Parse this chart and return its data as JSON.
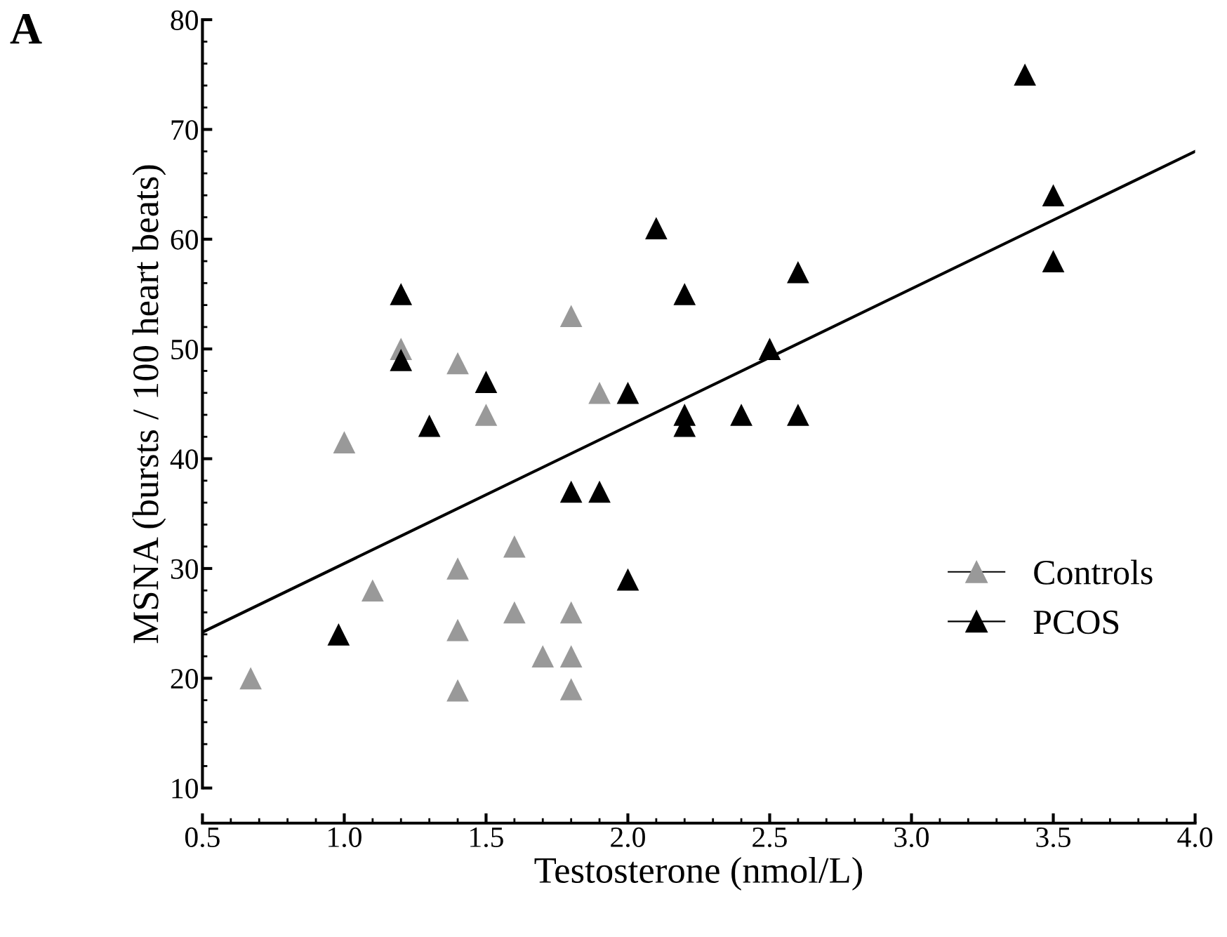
{
  "chart_data": {
    "type": "scatter",
    "xlabel": "Testosterone (nmol/L)",
    "ylabel": "MSNA (bursts / 100 heart beats)",
    "annotations": [
      "A"
    ],
    "xlim": [
      0.5,
      4.0
    ],
    "xticks": [
      {
        "value": 0.5,
        "label": "0.5"
      },
      {
        "value": 1.0,
        "label": "1.0"
      },
      {
        "value": 1.5,
        "label": "1.5"
      },
      {
        "value": 2.0,
        "label": "2.0"
      },
      {
        "value": 2.5,
        "label": "2.5"
      },
      {
        "value": 3.0,
        "label": "3.0"
      },
      {
        "value": 3.5,
        "label": "3.5"
      },
      {
        "value": 4.0,
        "label": "4.0"
      }
    ],
    "ylim": [
      10,
      80
    ],
    "yticks": [
      10,
      20,
      30,
      40,
      50,
      60,
      70,
      80
    ],
    "grid": false,
    "legend": "bottom right",
    "series": [
      {
        "name": "Controls",
        "color": "#999999",
        "marker": "triangle",
        "x": [
          0.67,
          1.0,
          1.1,
          1.2,
          1.4,
          1.4,
          1.4,
          1.4,
          1.5,
          1.6,
          1.6,
          1.7,
          1.8,
          1.8,
          1.8,
          1.8,
          1.9
        ],
        "values": [
          20,
          41.5,
          28,
          50,
          48.7,
          30,
          24.4,
          18.9,
          44,
          32,
          26,
          22,
          53,
          26,
          22,
          19,
          46
        ]
      },
      {
        "name": "PCOS",
        "color": "#000000",
        "marker": "triangle",
        "x": [
          0.98,
          1.2,
          1.2,
          1.3,
          1.5,
          1.8,
          1.9,
          2.0,
          2.0,
          2.1,
          2.2,
          2.2,
          2.2,
          2.4,
          2.5,
          2.6,
          2.6,
          3.4,
          3.5,
          3.5
        ],
        "values": [
          24,
          55,
          49,
          43,
          47,
          37,
          37,
          46,
          29,
          61,
          55,
          44,
          43,
          44,
          50,
          57,
          44,
          75,
          64,
          58
        ]
      },
      {
        "type": "line",
        "color": "#000000",
        "x": [
          0.5,
          4.0
        ],
        "values": [
          24.2,
          68.0
        ],
        "line_style": "solid"
      }
    ]
  }
}
